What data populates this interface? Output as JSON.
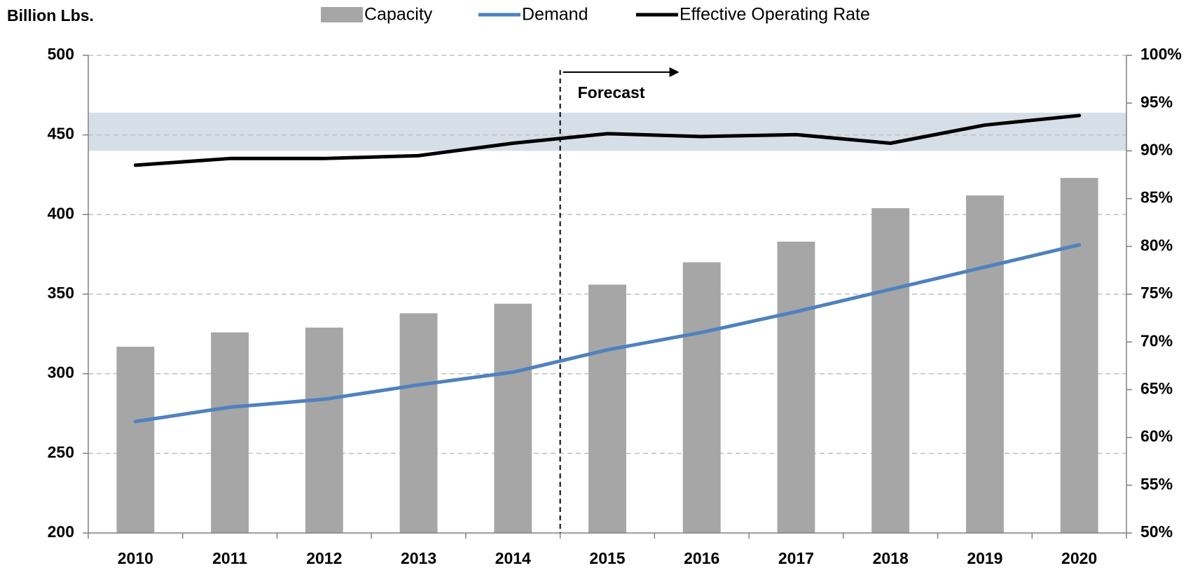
{
  "chart_data": {
    "type": "bar_line",
    "ylabel": "Billion Lbs.",
    "categories": [
      "2010",
      "2011",
      "2012",
      "2013",
      "2014",
      "2015",
      "2016",
      "2017",
      "2018",
      "2019",
      "2020"
    ],
    "series": [
      {
        "name": "Capacity",
        "type": "bar",
        "color": "#a6a6a6",
        "values": [
          317,
          326,
          329,
          338,
          344,
          356,
          370,
          383,
          404,
          412,
          423
        ]
      },
      {
        "name": "Demand",
        "type": "line",
        "color": "#4f81bd",
        "values": [
          270,
          279,
          284,
          293,
          301,
          315,
          326,
          339,
          353,
          367,
          381
        ]
      },
      {
        "name": "Effective Operating Rate",
        "type": "line",
        "color": "#000000",
        "axis": "y2",
        "values": [
          88.5,
          89.2,
          89.2,
          89.5,
          90.8,
          91.8,
          91.5,
          91.7,
          90.8,
          92.7,
          93.7
        ]
      }
    ],
    "ylim": [
      200,
      500
    ],
    "yticks": [
      200,
      250,
      300,
      350,
      400,
      450,
      500
    ],
    "y2lim": [
      50,
      100
    ],
    "y2ticks": [
      {
        "value": 50,
        "label": "50%"
      },
      {
        "value": 55,
        "label": "55%"
      },
      {
        "value": 60,
        "label": "60%"
      },
      {
        "value": 65,
        "label": "65%"
      },
      {
        "value": 70,
        "label": "70%"
      },
      {
        "value": 75,
        "label": "75%"
      },
      {
        "value": 80,
        "label": "80%"
      },
      {
        "value": 85,
        "label": "85%"
      },
      {
        "value": 90,
        "label": "90%"
      },
      {
        "value": 95,
        "label": "95%"
      },
      {
        "value": 100,
        "label": "100%"
      }
    ],
    "band": {
      "axis": "y2",
      "range": [
        90,
        94
      ],
      "color": "#d6dfe8"
    },
    "forecast": {
      "label": "Forecast",
      "start": "2015"
    },
    "grid": true,
    "legend": "top"
  }
}
